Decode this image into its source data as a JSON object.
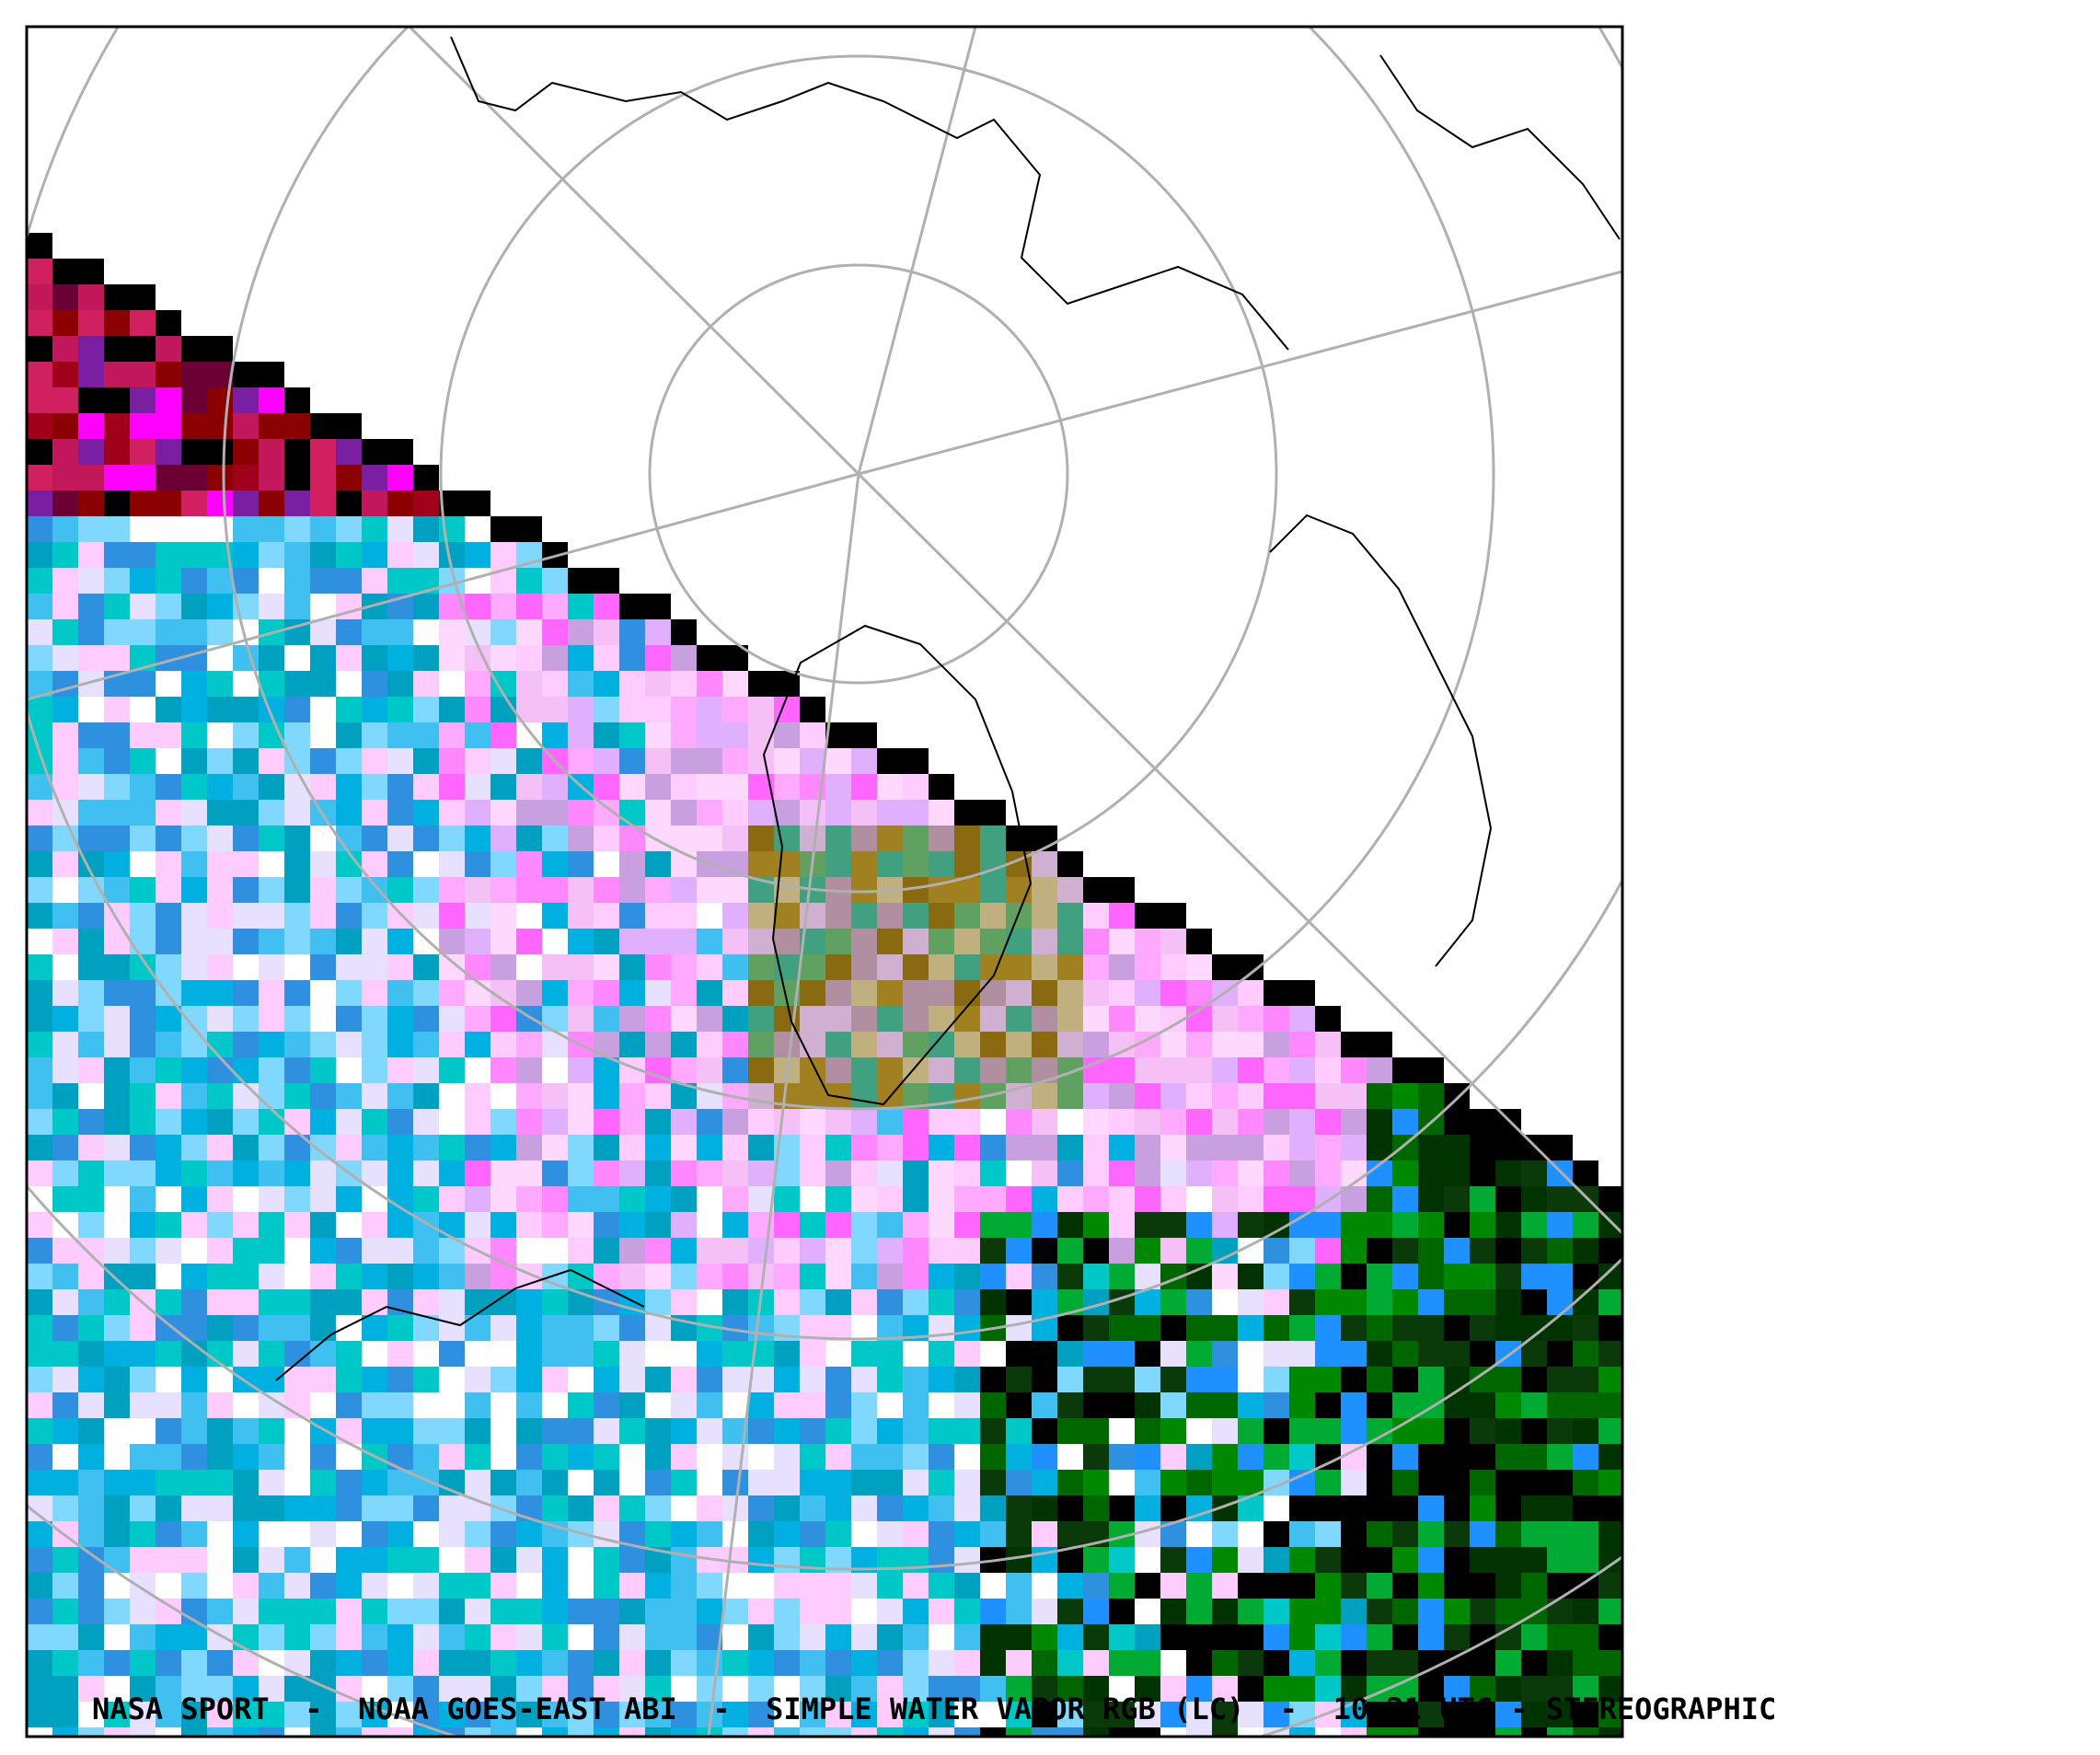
{
  "caption": "NASA SPORT  -  NOAA GOES-EAST ABI  -  SIMPLE WATER VAPOR RGB (LC)  -  10:21 UTC - STEREOGRAPHIC"
}
